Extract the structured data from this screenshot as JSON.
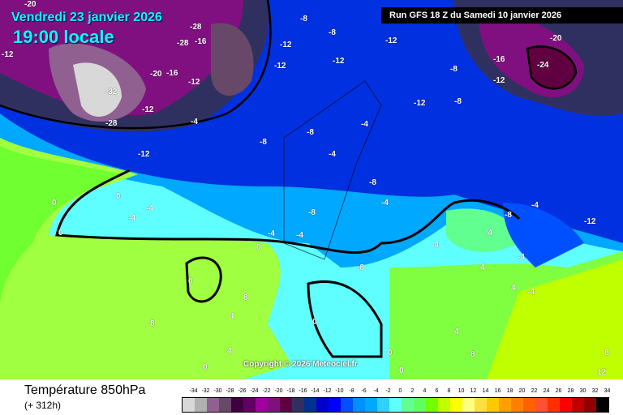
{
  "header": {
    "date": "Vendredi 23 janvier 2026",
    "time": "19:00 locale",
    "run": "Run GFS 18 Z du Samedi 10 janvier 2026"
  },
  "copyright": "Copyright © 2026 Meteociel.fr",
  "footer": {
    "title": "Température 850hPa",
    "subtitle": "(+ 312h)"
  },
  "legend": {
    "labels": [
      "-34",
      "-32",
      "-30",
      "-28",
      "-26",
      "-24",
      "-22",
      "-20",
      "-18",
      "-16",
      "-14",
      "-12",
      "-10",
      "-8",
      "-6",
      "-4",
      "-2",
      "0",
      "2",
      "4",
      "6",
      "8",
      "10",
      "12",
      "14",
      "16",
      "18",
      "20",
      "22",
      "24",
      "26",
      "28",
      "30",
      "32",
      "34"
    ],
    "colors": [
      "#d8d8d8",
      "#b0b0b0",
      "#906090",
      "#684868",
      "#400040",
      "#600060",
      "#a000a0",
      "#801080",
      "#600040",
      "#303060",
      "#003090",
      "#0000c8",
      "#0000ff",
      "#0050ff",
      "#0090ff",
      "#00a8ff",
      "#30d0ff",
      "#60ffff",
      "#60ff90",
      "#60ff60",
      "#70ff00",
      "#c0ff00",
      "#ffff00",
      "#ffff80",
      "#ffe040",
      "#ffc800",
      "#ffa000",
      "#ff8000",
      "#ff6000",
      "#ff5030",
      "#ff3000",
      "#ff0000",
      "#c00000",
      "#900000",
      "#000000"
    ]
  },
  "map_labels": [
    "-20",
    "-12",
    "-28",
    "-16",
    "-28",
    "-16",
    "-20",
    "-12",
    "-8",
    "-12",
    "-8",
    "-12",
    "-12",
    "-8",
    "-20",
    "-16",
    "-24",
    "-12",
    "-8",
    "-12",
    "-32",
    "-28",
    "-12",
    "-12",
    "-4",
    "-8",
    "-8",
    "-12",
    "-4",
    "-8",
    "-4",
    "-4",
    "-8",
    "-4",
    "-4",
    "0",
    "0",
    "-4",
    "-4",
    "0",
    "0",
    "0",
    "-8",
    "-4",
    "-4",
    "-4",
    "4",
    "-8",
    "-4",
    "-12",
    "4",
    "0",
    "0",
    "8",
    "4",
    "8",
    "0",
    "4",
    "0",
    "-4",
    "4",
    "8",
    "12",
    "8"
  ]
}
